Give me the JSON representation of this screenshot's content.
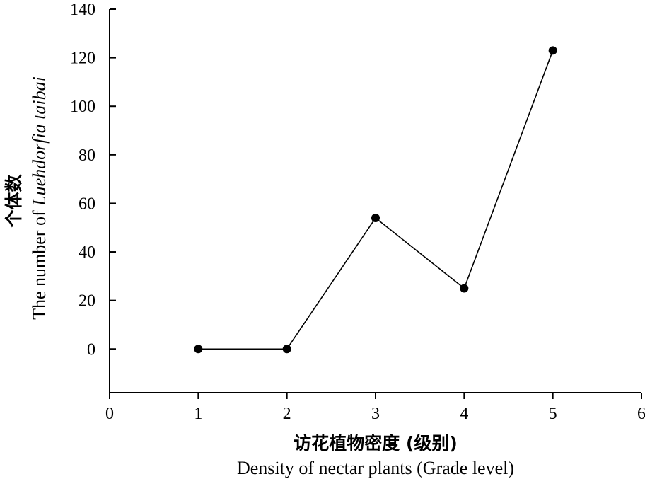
{
  "chart_data": {
    "type": "line",
    "x": [
      1,
      2,
      3,
      4,
      5
    ],
    "values": [
      0,
      0,
      54,
      25,
      123
    ],
    "xlim": [
      0,
      6
    ],
    "ylim": [
      -18,
      140
    ],
    "xticks": [
      "0",
      "1",
      "2",
      "3",
      "4",
      "5",
      "6"
    ],
    "yticks": [
      "0",
      "20",
      "40",
      "60",
      "80",
      "100",
      "120",
      "140"
    ],
    "xlabel_cn": "访花植物密度 (级别)",
    "xlabel_en": "Density of  nectar plants (Grade level)",
    "ylabel_cn": "个体数",
    "ylabel_en_prefix": "The number of ",
    "ylabel_en_species": "Luehdorfia taibai",
    "grid": false,
    "legend": "none",
    "line_color": "#000000",
    "marker_color": "#000000"
  }
}
